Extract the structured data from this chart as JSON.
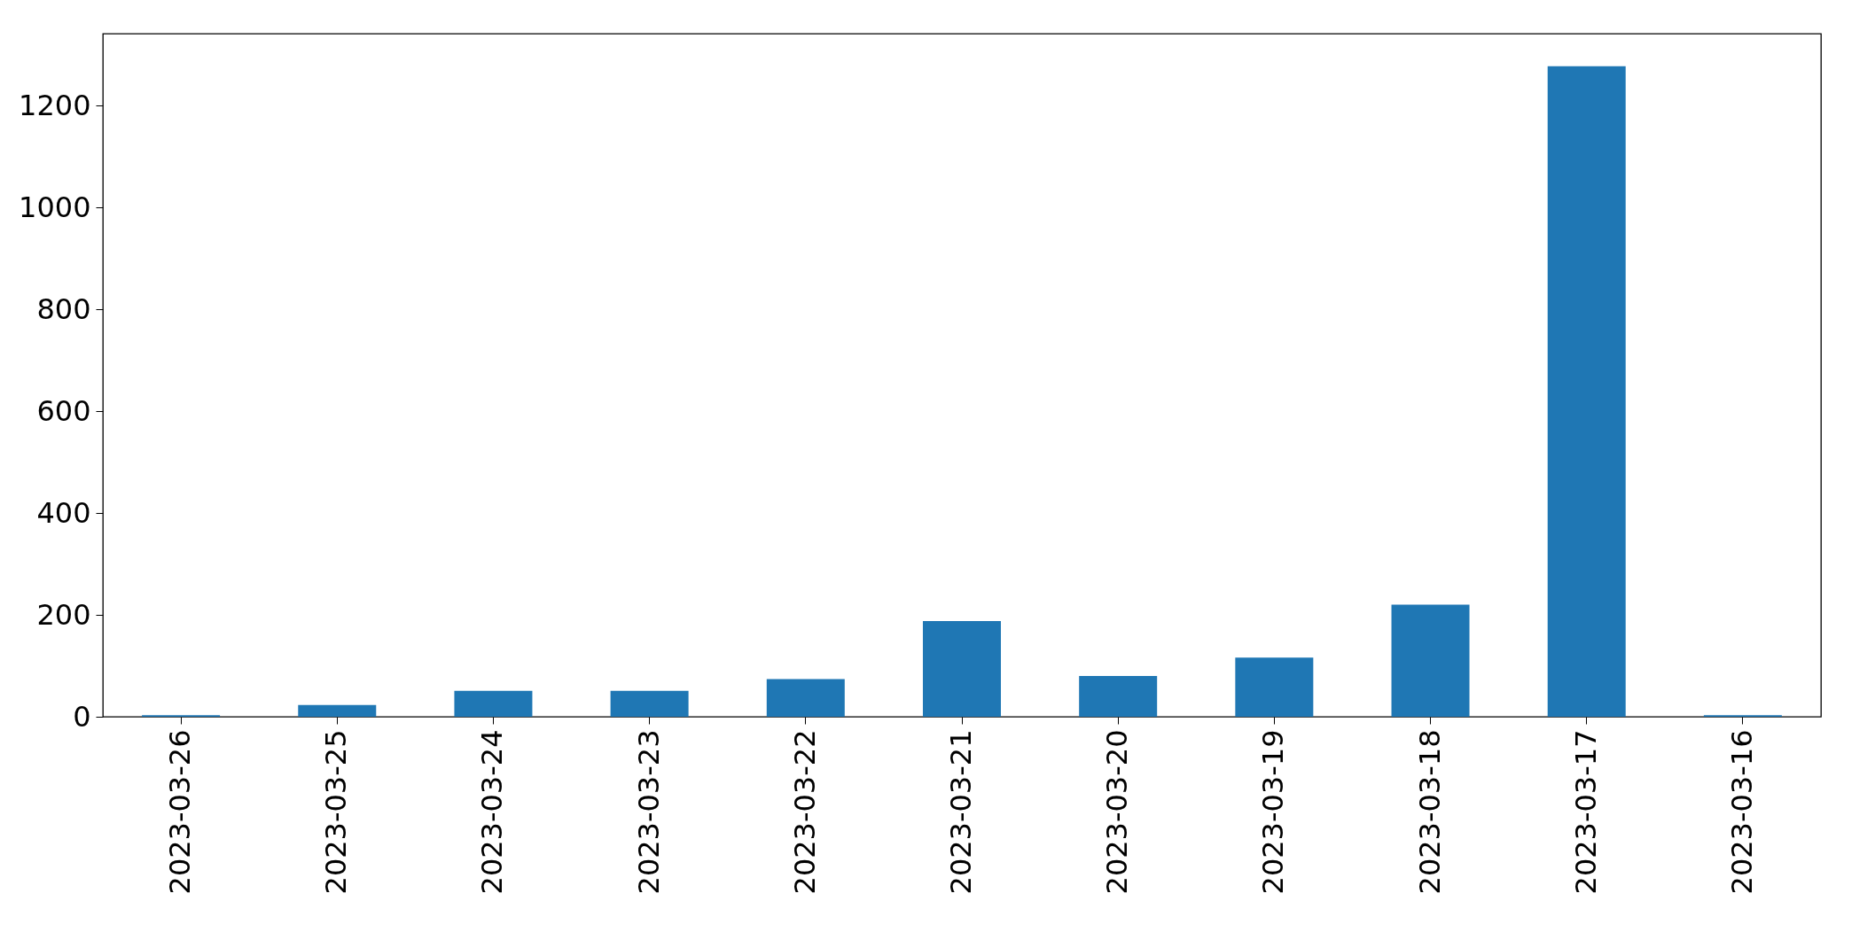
{
  "chart_data": {
    "type": "bar",
    "categories": [
      "2023-03-26",
      "2023-03-25",
      "2023-03-24",
      "2023-03-23",
      "2023-03-22",
      "2023-03-21",
      "2023-03-20",
      "2023-03-19",
      "2023-03-18",
      "2023-03-17",
      "2023-03-16"
    ],
    "values": [
      3,
      23,
      51,
      51,
      74,
      188,
      80,
      116,
      220,
      1277,
      3
    ],
    "color": "#1f77b4",
    "ylim": [
      0,
      1341
    ],
    "yticks": [
      0,
      200,
      400,
      600,
      800,
      1000,
      1200
    ],
    "grid": false
  }
}
